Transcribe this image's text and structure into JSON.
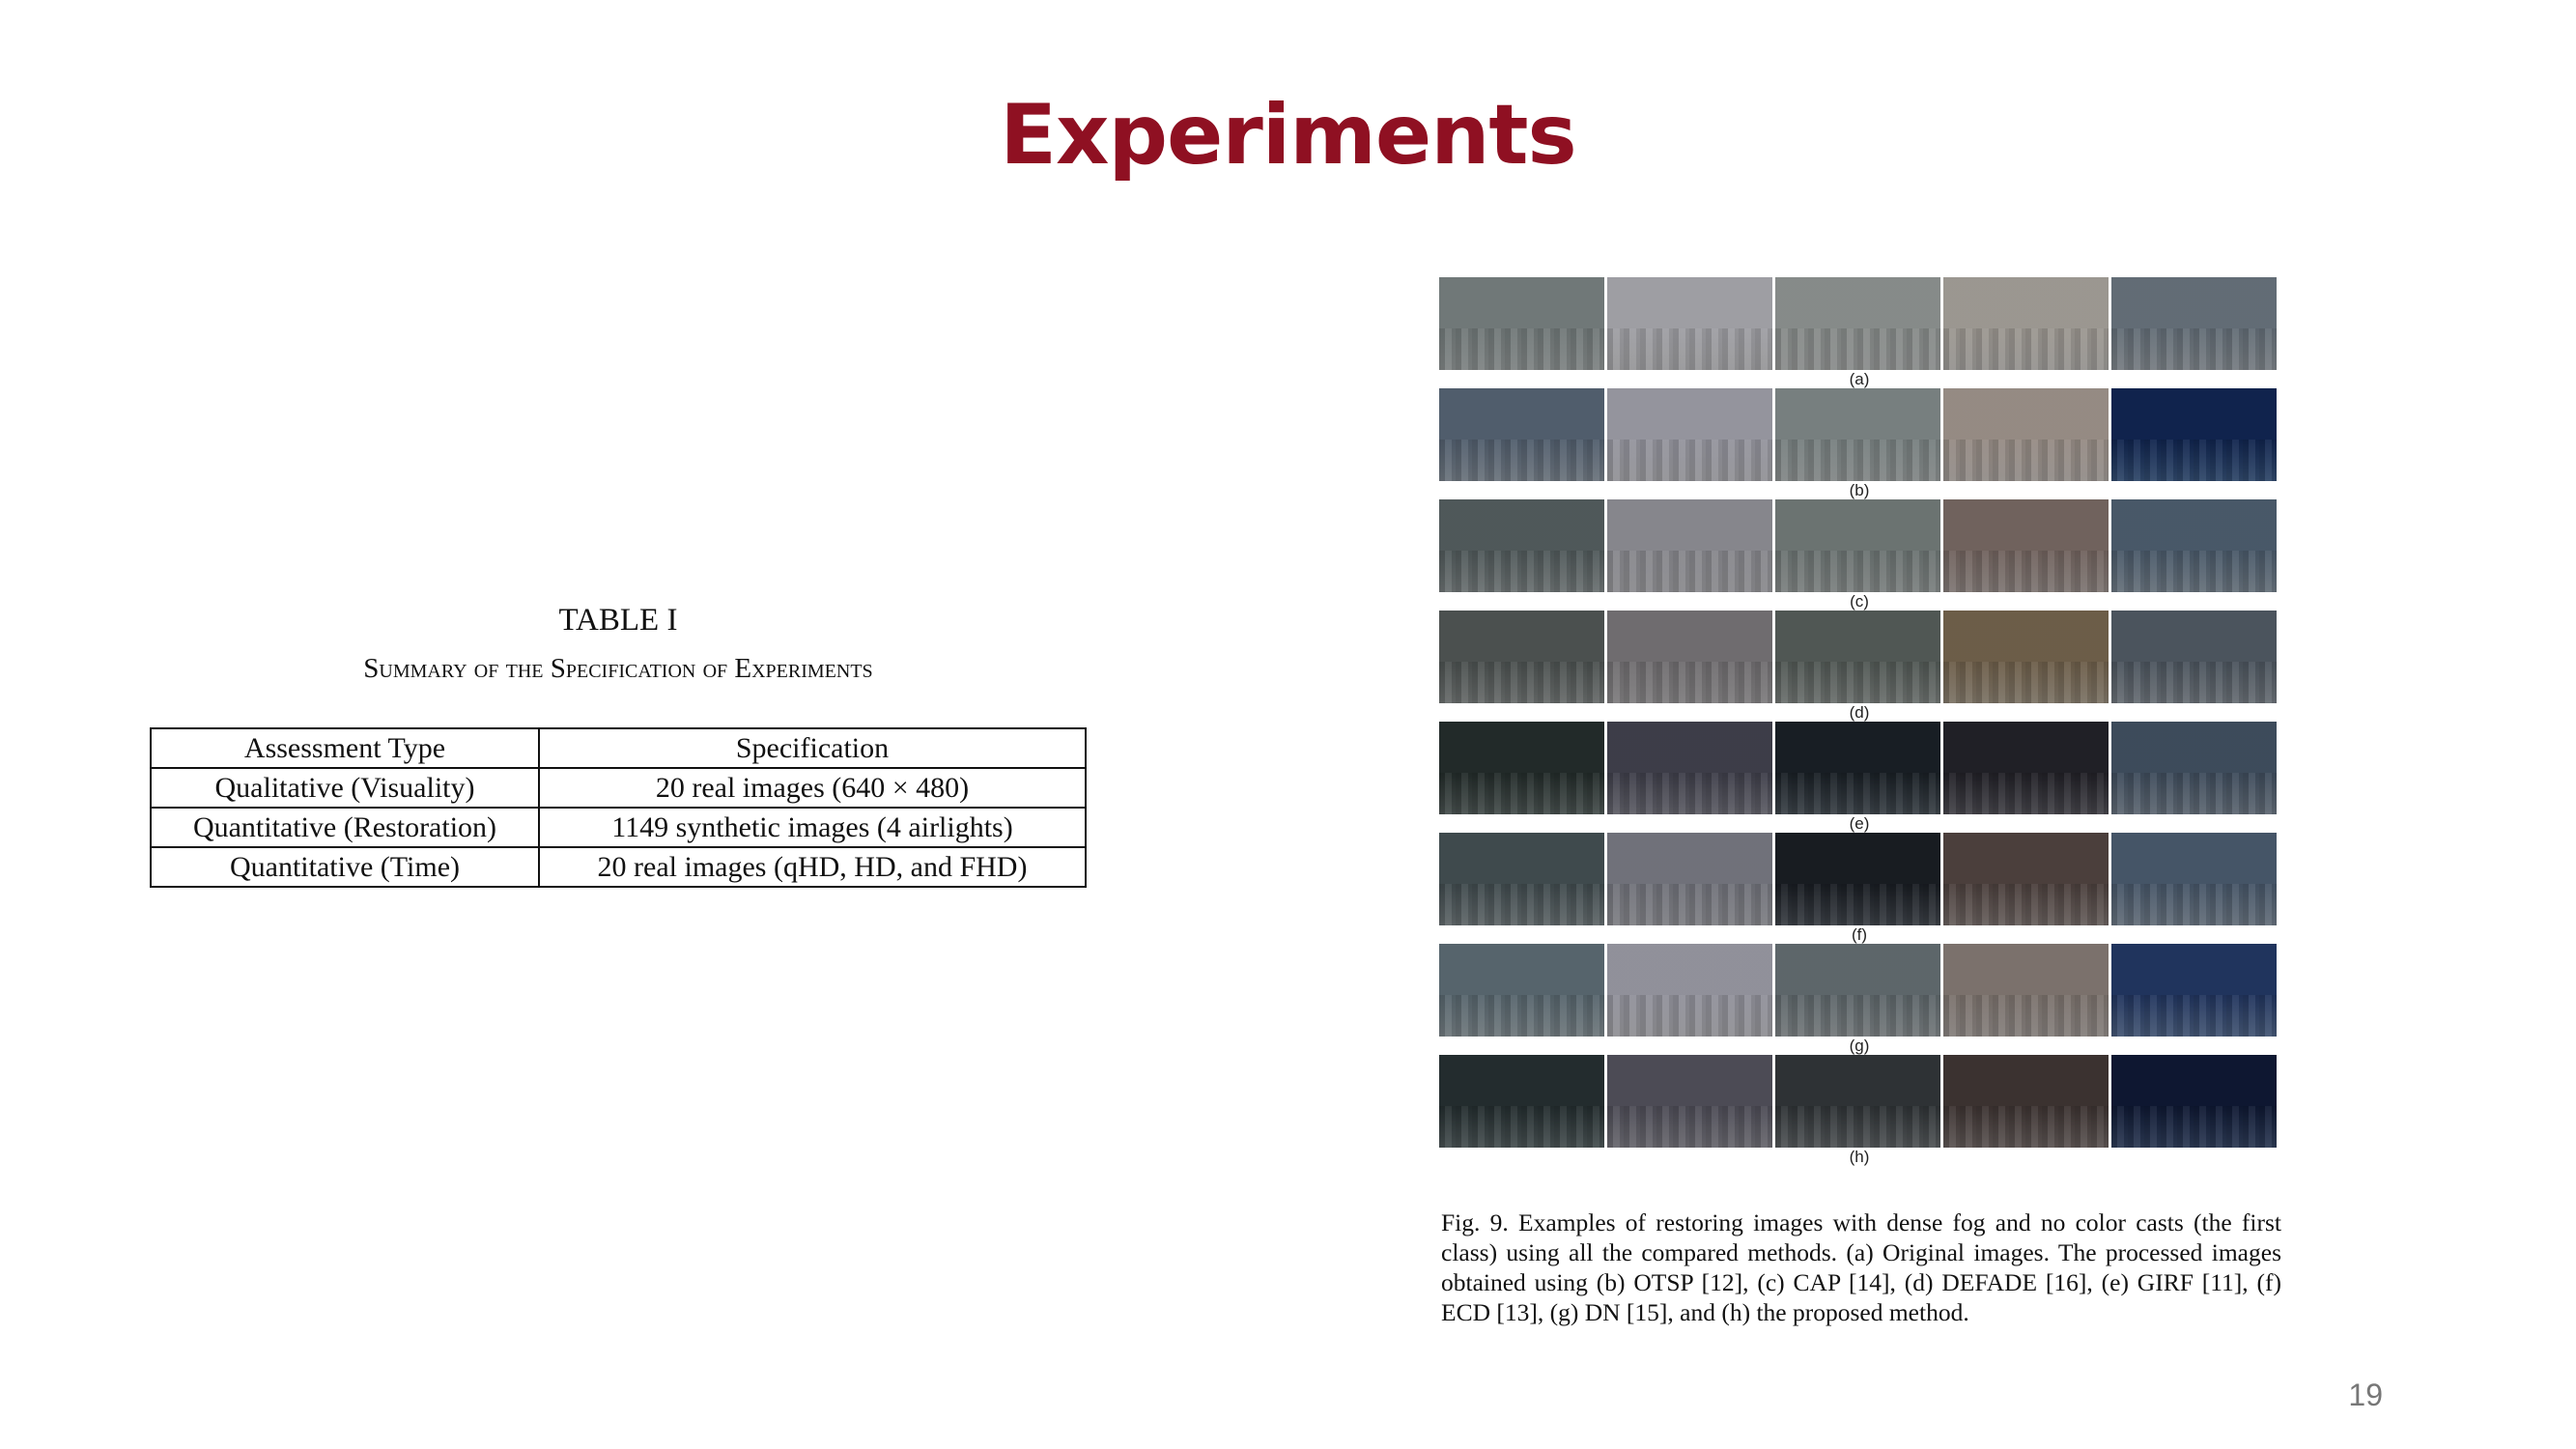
{
  "slide": {
    "title": "Experiments",
    "page_number": "19"
  },
  "table": {
    "number": "TABLE I",
    "description": "Summary of the Specification of Experiments",
    "headers": [
      "Assessment Type",
      "Specification"
    ],
    "rows": [
      [
        "Qualitative (Visuality)",
        "20 real images (640 × 480)"
      ],
      [
        "Quantitative (Restoration)",
        "1149 synthetic images (4 airlights)"
      ],
      [
        "Quantitative (Time)",
        "20 real images (qHD, HD, and FHD)"
      ]
    ]
  },
  "figure": {
    "rows": [
      {
        "label": "(a)",
        "tones": [
          "#a9afaf",
          "#c9c9cc",
          "#b9bcbb",
          "#c7c4c0",
          "#9ea6ad"
        ]
      },
      {
        "label": "(b)",
        "tones": [
          "#8f9aa6",
          "#c2c2c8",
          "#aeb4b4",
          "#c3bcb7",
          "#3f5f8c"
        ]
      },
      {
        "label": "(c)",
        "tones": [
          "#8e9697",
          "#b9b9bd",
          "#a5abaa",
          "#a99e9a",
          "#8896a3"
        ]
      },
      {
        "label": "(d)",
        "tones": [
          "#8a8f8e",
          "#a8a6a8",
          "#8f9592",
          "#a69a88",
          "#8a929a"
        ]
      },
      {
        "label": "(e)",
        "tones": [
          "#5d6866",
          "#7d7d88",
          "#4f5860",
          "#5b5a62",
          "#7d8a98"
        ]
      },
      {
        "label": "(f)",
        "tones": [
          "#7f898c",
          "#a9aab0",
          "#4e545c",
          "#8a7f7c",
          "#8593a2"
        ]
      },
      {
        "label": "(g)",
        "tones": [
          "#94a0a6",
          "#c0c0c6",
          "#9aa1a4",
          "#b1aaa6",
          "#5b739a"
        ]
      },
      {
        "label": "(h)",
        "tones": [
          "#5e6a6c",
          "#8b8a93",
          "#6c7174",
          "#7b716f",
          "#3b4d70"
        ]
      }
    ],
    "caption": "Fig. 9.   Examples of restoring images with dense fog and no color casts (the first class) using all the compared methods. (a) Original images. The processed images obtained using (b) OTSP [12], (c) CAP [14], (d) DEFADE [16], (e) GIRF [11], (f) ECD [13], (g) DN [15], and (h) the proposed method."
  }
}
